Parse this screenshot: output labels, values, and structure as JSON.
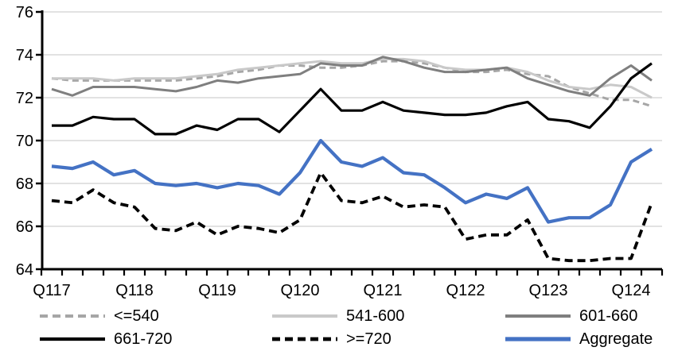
{
  "chart_data": {
    "type": "line",
    "title": "",
    "xlabel": "",
    "ylabel": "",
    "x": [
      "2017Q1",
      "2017Q2",
      "2017Q3",
      "2017Q4",
      "2018Q1",
      "2018Q2",
      "2018Q3",
      "2018Q4",
      "2019Q1",
      "2019Q2",
      "2019Q3",
      "2019Q4",
      "2020Q1",
      "2020Q2",
      "2020Q3",
      "2020Q4",
      "2021Q1",
      "2021Q2",
      "2021Q3",
      "2021Q4",
      "2022Q1",
      "2022Q2",
      "2022Q3",
      "2022Q4",
      "2023Q1",
      "2023Q2",
      "2023Q3",
      "2023Q4",
      "2024Q1",
      "2024Q2"
    ],
    "x_axis_tick_labels": [
      "Q117",
      "Q118",
      "Q119",
      "Q120",
      "Q121",
      "Q122",
      "Q123",
      "Q124"
    ],
    "ylim": [
      64,
      76
    ],
    "yticks": [
      64,
      66,
      68,
      70,
      72,
      74,
      76
    ],
    "grid": "horizontal",
    "legend_position": "bottom",
    "series": [
      {
        "name": "<=540",
        "color": "#a6a6a6",
        "style": "dashed",
        "width": 3,
        "values": [
          72.9,
          72.8,
          72.8,
          72.8,
          72.8,
          72.8,
          72.8,
          72.9,
          73.0,
          73.2,
          73.3,
          73.5,
          73.5,
          73.4,
          73.4,
          73.5,
          73.7,
          73.7,
          73.6,
          73.4,
          73.2,
          73.2,
          73.3,
          73.1,
          73.0,
          72.5,
          72.2,
          71.9,
          71.9,
          71.6
        ]
      },
      {
        "name": "541-600",
        "color": "#c9c9c9",
        "style": "solid",
        "width": 3,
        "values": [
          72.9,
          72.9,
          72.9,
          72.8,
          72.9,
          72.9,
          72.9,
          73.0,
          73.1,
          73.3,
          73.4,
          73.5,
          73.6,
          73.7,
          73.6,
          73.6,
          73.8,
          73.8,
          73.7,
          73.4,
          73.3,
          73.3,
          73.4,
          73.2,
          72.8,
          72.5,
          72.4,
          72.6,
          72.5,
          72.0
        ]
      },
      {
        "name": "601-660",
        "color": "#7f7f7f",
        "style": "solid",
        "width": 3,
        "values": [
          72.4,
          72.1,
          72.5,
          72.5,
          72.5,
          72.4,
          72.3,
          72.5,
          72.8,
          72.7,
          72.9,
          73.0,
          73.1,
          73.6,
          73.5,
          73.5,
          73.9,
          73.7,
          73.4,
          73.2,
          73.2,
          73.3,
          73.4,
          72.9,
          72.6,
          72.3,
          72.1,
          72.9,
          73.5,
          72.8
        ]
      },
      {
        "name": "661-720",
        "color": "#000000",
        "style": "solid",
        "width": 3.2,
        "values": [
          70.7,
          70.7,
          71.1,
          71.0,
          71.0,
          70.3,
          70.3,
          70.7,
          70.5,
          71.0,
          71.0,
          70.4,
          71.4,
          72.4,
          71.4,
          71.4,
          71.8,
          71.4,
          71.3,
          71.2,
          71.2,
          71.3,
          71.6,
          71.8,
          71.0,
          70.9,
          70.6,
          71.6,
          72.9,
          73.6
        ]
      },
      {
        "name": ">=720",
        "color": "#000000",
        "style": "dashed",
        "width": 3.8,
        "values": [
          67.2,
          67.1,
          67.7,
          67.1,
          66.9,
          65.9,
          65.8,
          66.2,
          65.6,
          66.0,
          65.9,
          65.7,
          66.3,
          68.5,
          67.2,
          67.1,
          67.4,
          66.9,
          67.0,
          66.9,
          65.4,
          65.6,
          65.6,
          66.3,
          64.5,
          64.4,
          64.4,
          64.5,
          64.5,
          67.1
        ]
      },
      {
        "name": "Aggregate",
        "color": "#4472c4",
        "style": "solid",
        "width": 4.2,
        "values": [
          68.8,
          68.7,
          69.0,
          68.4,
          68.6,
          68.0,
          67.9,
          68.0,
          67.8,
          68.0,
          67.9,
          67.5,
          68.5,
          70.0,
          69.0,
          68.8,
          69.2,
          68.5,
          68.4,
          67.8,
          67.1,
          67.5,
          67.3,
          67.8,
          66.2,
          66.4,
          66.4,
          67.0,
          69.0,
          69.6
        ]
      }
    ]
  },
  "colors": {
    "background": "#ffffff",
    "grid": "#d9d9d9",
    "axis": "#000000",
    "tick_text": "#000000"
  }
}
